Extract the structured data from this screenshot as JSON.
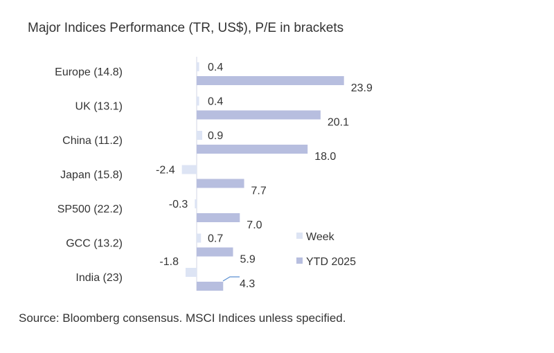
{
  "chart_data": {
    "type": "bar",
    "title": "Major Indices Performance (TR, US$), P/E in brackets",
    "categories": [
      "Europe (14.8)",
      "UK (13.1)",
      "China (11.2)",
      "Japan (15.8)",
      "SP500 (22.2)",
      "GCC (13.2)",
      "India (23)"
    ],
    "series": [
      {
        "name": "Week",
        "values": [
          0.4,
          0.4,
          0.9,
          -2.4,
          -0.3,
          0.7,
          -1.8
        ],
        "color": "#dde4f4"
      },
      {
        "name": "YTD 2025",
        "values": [
          23.9,
          20.1,
          18.0,
          7.7,
          7.0,
          5.9,
          4.3
        ],
        "color": "#b7bedf"
      }
    ],
    "legend": "right",
    "grid": false
  },
  "source": "Source: Bloomberg consensus. MSCI Indices unless specified."
}
